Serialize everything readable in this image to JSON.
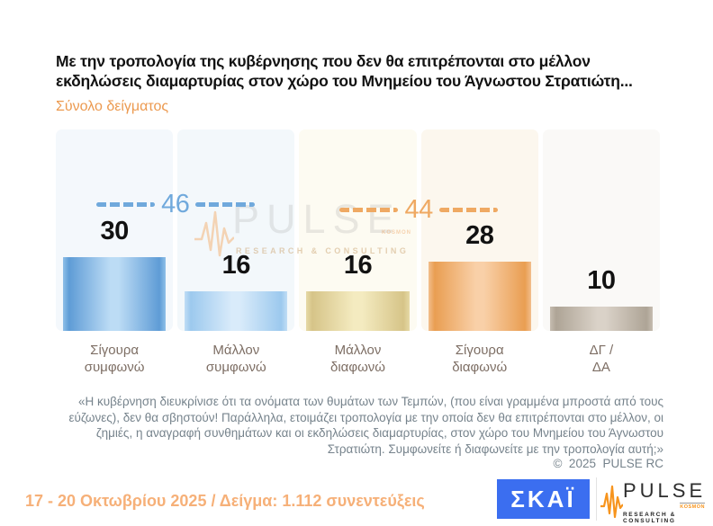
{
  "header": {
    "title_line1": "Με την τροπολογία της κυβέρνησης που δεν θα επιτρέπονται στο μέλλον",
    "title_line2": "εκδηλώσεις διαμαρτυρίας στον χώρο του Μνημείου του Άγνωστου Στρατιώτη...",
    "subtitle": "Σύνολο δείγματος"
  },
  "chart_data": {
    "type": "bar",
    "title": "Με την τροπολογία της κυβέρνησης που δεν θα επιτρέπονται στο μέλλον εκδηλώσεις διαμαρτυρίας στον χώρο του Μνημείου του Άγνωστου Στρατιώτη...",
    "subtitle": "Σύνολο δείγματος",
    "unit": "%",
    "categories": [
      "Σίγουρα συμφωνώ",
      "Μάλλον συμφωνώ",
      "Μάλλον διαφωνώ",
      "Σίγουρα διαφωνώ",
      "ΔΓ / ΔΑ"
    ],
    "values": [
      30,
      16,
      16,
      28,
      10
    ],
    "bars": [
      {
        "category_line1": "Σίγουρα",
        "category_line2": "συμφωνώ",
        "value": 30,
        "panel_bg": "#F4F8FC",
        "edge": "#5F9CD6",
        "center": "#BCDCF5",
        "outer": "#8FC0E8"
      },
      {
        "category_line1": "Μάλλον",
        "category_line2": "συμφωνώ",
        "value": 16,
        "panel_bg": "#F3F8FB",
        "edge": "#9CC9EE",
        "center": "#D9EBFA",
        "outer": "#C0DDF5"
      },
      {
        "category_line1": "Μάλλον",
        "category_line2": "διαφωνώ",
        "value": 16,
        "panel_bg": "#FDFBF2",
        "edge": "#D6C488",
        "center": "#F4EBC0",
        "outer": "#E6DAA6"
      },
      {
        "category_line1": "Σίγουρα",
        "category_line2": "διαφωνώ",
        "value": 28,
        "panel_bg": "#FCF7EE",
        "edge": "#E99E52",
        "center": "#F9D0A8",
        "outer": "#F2BE8C"
      },
      {
        "category_line1": "ΔΓ /",
        "category_line2": "ΔΑ",
        "value": 10,
        "panel_bg": "#FAF9F7",
        "edge": "#AEA496",
        "center": "#DAD2C8",
        "outer": "#C6BDB1"
      }
    ],
    "groups": [
      {
        "label": "46",
        "value": 46,
        "from": 0,
        "to": 1,
        "color": "#70A9DC"
      },
      {
        "label": "44",
        "value": 44,
        "from": 2,
        "to": 3,
        "color": "#EFA963"
      }
    ],
    "legend": null,
    "grid": false
  },
  "watermark": {
    "brand": "PULSE",
    "kosmon": "KOSMON",
    "tagline": "RESEARCH & CONSULTING"
  },
  "quote": {
    "text": "«Η κυβέρνηση διευκρίνισε ότι τα ονόματα των θυμάτων των Τεμπών, (που είναι γραμμένα μπροστά από τους εύζωνες), δεν θα σβηστούν! Παράλληλα, ετοιμάζει τροπολογία με την οποία δεν θα επιτρέπονται στο μέλλον, οι ζημιές, η αναγραφή συνθημάτων και οι εκδηλώσεις διαμαρτυρίας, στον χώρο του Μνημείου του Άγνωστου Στρατιώτη. Συμφωνείτε ή διαφωνείτε με την τροπολογία αυτή;»",
    "copyright": "©  2025  PULSE RC"
  },
  "footer": {
    "fieldwork": "17 - 20 Οκτωβρίου 2025  /  Δείγμα:  1.112 συνεντεύξεις",
    "skai_text": "ΣΚΑΪ",
    "pulse": {
      "brand": "PULSE",
      "kosmon": "KOSMON",
      "tagline": "RESEARCH & CONSULTING"
    }
  },
  "colors": {
    "accent_orange": "#EC9A50",
    "footer_orange": "#F6B078",
    "group_blue": "#70A9DC",
    "group_orange": "#EFA963",
    "label_brown": "#7D6E64",
    "quote_grey": "#76838C",
    "skai_blue": "#3B6EF0",
    "pulse_orange": "#F7941D"
  }
}
